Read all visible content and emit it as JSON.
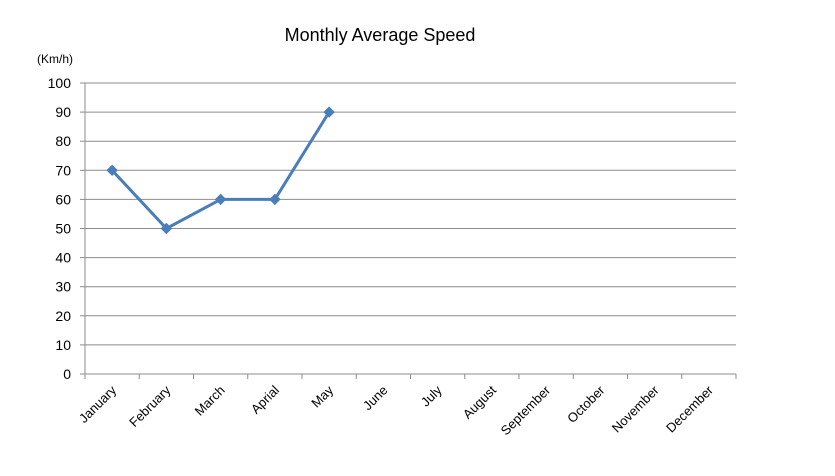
{
  "chart_data": {
    "type": "line",
    "title": "Monthly Average Speed",
    "y_unit": "(Km/h)",
    "xlabel": "",
    "ylabel": "",
    "categories": [
      "January",
      "February",
      "March",
      "Aprial",
      "May",
      "June",
      "July",
      "August",
      "September",
      "October",
      "November",
      "December"
    ],
    "series": [
      {
        "values": [
          70,
          50,
          60,
          60,
          90,
          null,
          null,
          null,
          null,
          null,
          null,
          null
        ],
        "color": "#4a7ebb",
        "marker": "diamond"
      }
    ],
    "ylim": [
      0,
      100
    ],
    "yticks": [
      0,
      10,
      20,
      30,
      40,
      50,
      60,
      70,
      80,
      90,
      100
    ],
    "grid": true,
    "legend": "none"
  },
  "colors": {
    "gridline": "#8c8c8c",
    "axis": "#8c8c8c",
    "series": "#4a7ebb"
  }
}
